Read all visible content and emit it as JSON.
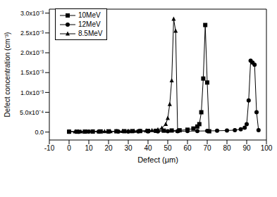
{
  "chart_data": {
    "type": "line",
    "x_label": "Defect (μm)",
    "y_label": "Defect concentration (cm⁻³)",
    "xlim": [
      -10,
      100
    ],
    "xticks": [
      -10,
      0,
      10,
      20,
      30,
      40,
      50,
      60,
      70,
      80,
      90,
      100
    ],
    "ylim": [
      -0.0002,
      0.0031
    ],
    "yticks": [
      {
        "value": 0,
        "label": "0.0"
      },
      {
        "value": 0.0005,
        "label": "5.0x10⁻⁴"
      },
      {
        "value": 0.001,
        "label": "1.0x10⁻³"
      },
      {
        "value": 0.0015,
        "label": "1.5x10⁻³"
      },
      {
        "value": 0.002,
        "label": "2.0x10⁻³"
      },
      {
        "value": 0.0025,
        "label": "2.5x10⁻³"
      },
      {
        "value": 0.003,
        "label": "3.0x10⁻³"
      }
    ],
    "grid": false,
    "legend": "upper left",
    "series": [
      {
        "name": "10MeV",
        "color": "#000000",
        "marker": "square",
        "x": [
          0,
          4,
          8,
          12,
          16,
          20,
          24,
          28,
          32,
          36,
          40,
          44,
          48,
          52,
          56,
          60,
          63,
          65,
          66,
          67,
          68,
          69,
          70,
          71
        ],
        "values": [
          1e-05,
          1e-05,
          1.2e-05,
          1.4e-05,
          1.6e-05,
          1.8e-05,
          2e-05,
          2.2e-05,
          2.4e-05,
          2.6e-05,
          2.9e-05,
          3.2e-05,
          3.6e-05,
          4e-05,
          4.5e-05,
          6e-05,
          9e-05,
          0.00014,
          0.0002,
          0.0005,
          0.00135,
          0.0027,
          0.00125,
          2e-05
        ]
      },
      {
        "name": "12MeV",
        "color": "#000000",
        "marker": "circle",
        "x": [
          0,
          5,
          10,
          15,
          20,
          25,
          30,
          35,
          40,
          45,
          50,
          55,
          60,
          65,
          70,
          75,
          80,
          84,
          87,
          89,
          90,
          91,
          92,
          93,
          94,
          95,
          96
        ],
        "values": [
          1e-05,
          1e-05,
          1.1e-05,
          1.2e-05,
          1.3e-05,
          1.4e-05,
          1.5e-05,
          1.6e-05,
          1.7e-05,
          1.9e-05,
          2e-05,
          2.2e-05,
          2.4e-05,
          2.6e-05,
          3e-05,
          3.4e-05,
          4e-05,
          5e-05,
          7e-05,
          0.00011,
          0.0002,
          0.0008,
          0.0018,
          0.00175,
          0.0017,
          0.0005,
          5e-05
        ]
      },
      {
        "name": "8.5MeV",
        "color": "#000000",
        "marker": "triangle",
        "x": [
          0,
          3,
          6,
          9,
          12,
          15,
          18,
          21,
          24,
          27,
          30,
          33,
          36,
          39,
          42,
          45,
          47,
          49,
          50,
          51,
          52,
          53,
          54,
          55
        ],
        "values": [
          1e-05,
          1.1e-05,
          1.2e-05,
          1.3e-05,
          1.4e-05,
          1.5e-05,
          1.6e-05,
          1.8e-05,
          2e-05,
          2.2e-05,
          2.4e-05,
          2.7e-05,
          3e-05,
          3.5e-05,
          4.5e-05,
          6e-05,
          0.0001,
          0.0002,
          0.00035,
          0.0007,
          0.0013,
          0.00285,
          0.00255,
          2e-05
        ]
      }
    ]
  }
}
